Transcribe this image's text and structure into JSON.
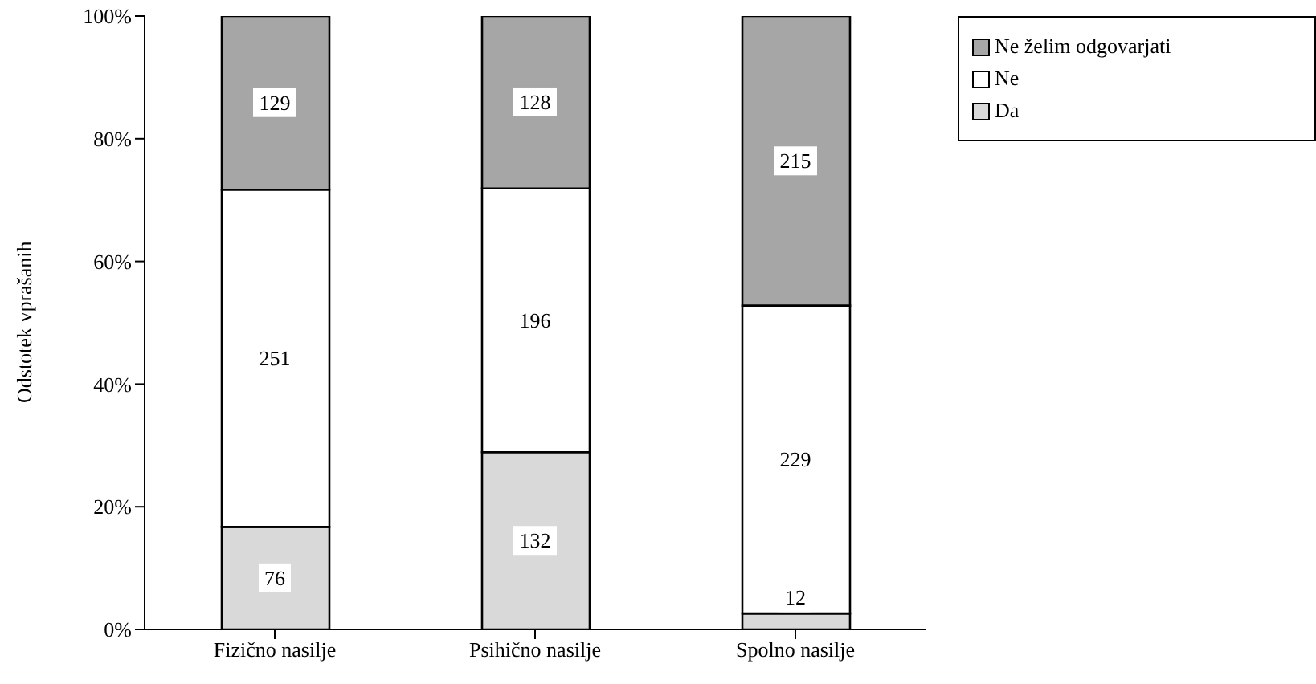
{
  "chart_data": {
    "type": "bar",
    "stacked": true,
    "ylabel": "Odstotek vprašanih",
    "categories": [
      "Fizično nasilje",
      "Psihično nasilje",
      "Spolno nasilje"
    ],
    "series": [
      {
        "name": "Da",
        "color": "#d9d9d9",
        "values": [
          16.7,
          28.9,
          2.6
        ]
      },
      {
        "name": "Ne",
        "color": "#ffffff",
        "values": [
          55.0,
          43.0,
          50.2
        ]
      },
      {
        "name": "Ne želim odgovarjati",
        "color": "#a6a6a6",
        "values": [
          28.3,
          28.1,
          47.2
        ]
      }
    ],
    "annotations": [
      {
        "text": "76",
        "x": "Fizično nasilje",
        "y": 8.4
      },
      {
        "text": "251",
        "x": "Fizično nasilje",
        "y": 44.2
      },
      {
        "text": "129",
        "x": "Fizično nasilje",
        "y": 85.9
      },
      {
        "text": "132",
        "x": "Psihično nasilje",
        "y": 14.5
      },
      {
        "text": "196",
        "x": "Psihično nasilje",
        "y": 50.4
      },
      {
        "text": "128",
        "x": "Psihično nasilje",
        "y": 86.0
      },
      {
        "text": "12",
        "x": "Spolno nasilje",
        "y": 5.2
      },
      {
        "text": "229",
        "x": "Spolno nasilje",
        "y": 27.7
      },
      {
        "text": "215",
        "x": "Spolno nasilje",
        "y": 76.4
      }
    ],
    "ylim": [
      0,
      100
    ],
    "yticks": [
      {
        "value": 0,
        "label": "0%"
      },
      {
        "value": 20,
        "label": "20%"
      },
      {
        "value": 40,
        "label": "40%"
      },
      {
        "value": 60,
        "label": "60%"
      },
      {
        "value": 80,
        "label": "80%"
      },
      {
        "value": 100,
        "label": "100%"
      }
    ],
    "grid": false,
    "legend": "top right"
  }
}
